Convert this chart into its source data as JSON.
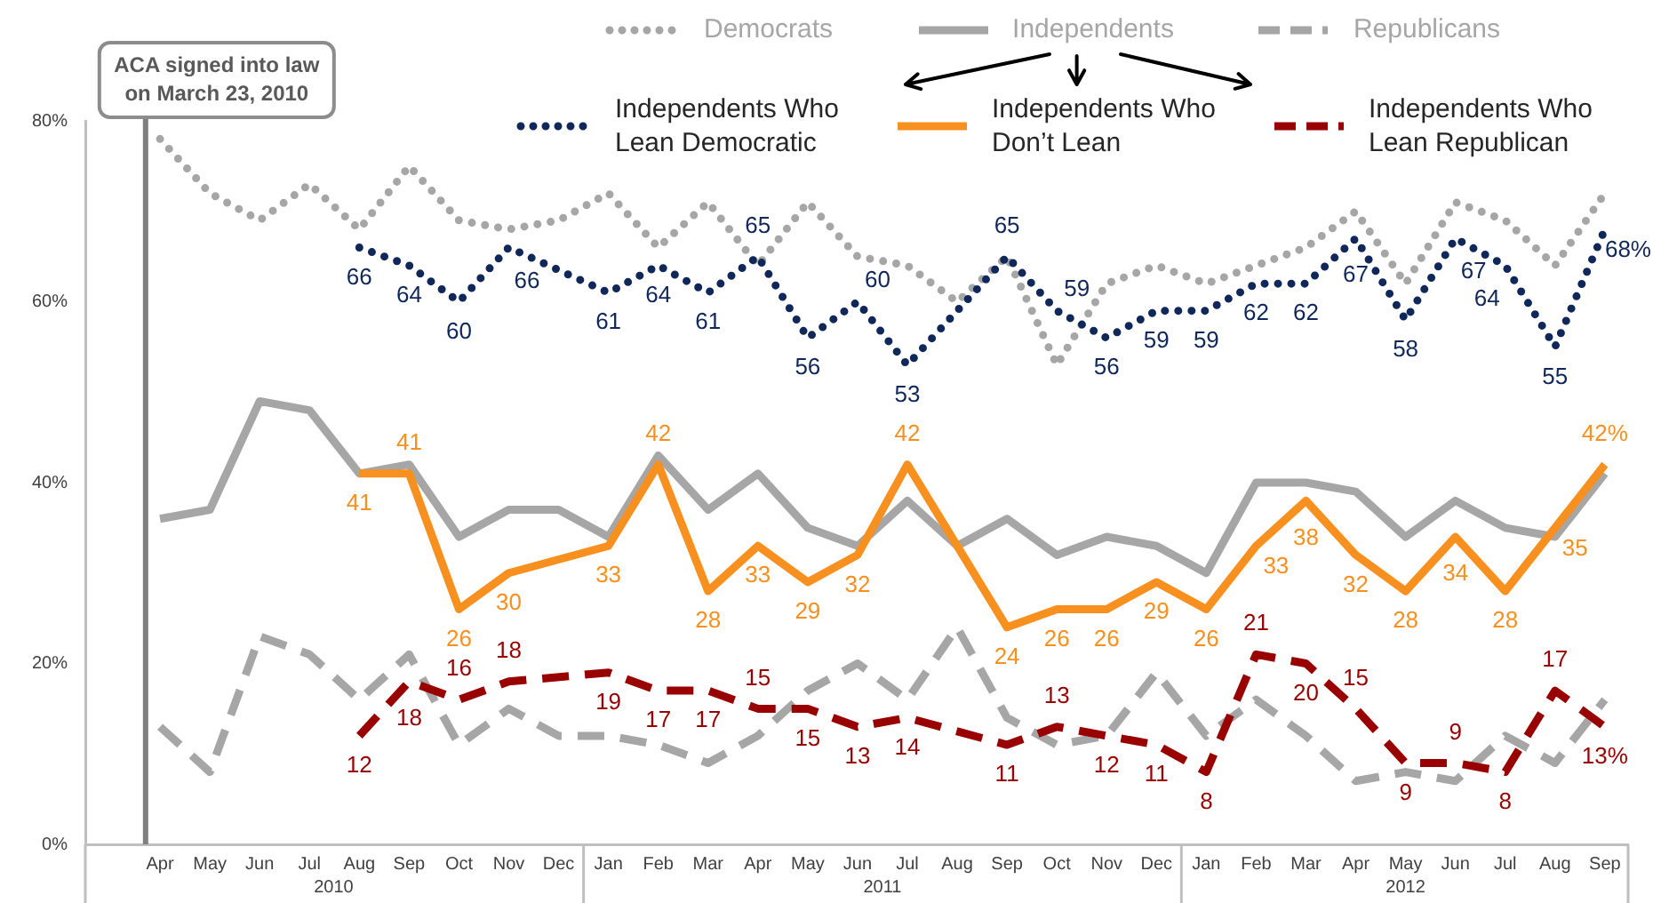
{
  "chart_data": {
    "type": "line",
    "x": [
      "2010-04",
      "2010-05",
      "2010-06",
      "2010-07",
      "2010-08",
      "2010-09",
      "2010-10",
      "2010-11",
      "2010-12",
      "2011-01",
      "2011-02",
      "2011-03",
      "2011-04",
      "2011-05",
      "2011-06",
      "2011-07",
      "2011-08",
      "2011-09",
      "2011-10",
      "2011-11",
      "2011-12",
      "2012-01",
      "2012-02",
      "2012-03",
      "2012-04",
      "2012-05",
      "2012-06",
      "2012-07",
      "2012-08",
      "2012-09"
    ],
    "xlim": [
      "2010-02-15",
      "2012-09-15"
    ],
    "xticks": [
      {
        "value": "2010-04",
        "label": "Apr"
      },
      {
        "value": "2010-05",
        "label": "May"
      },
      {
        "value": "2010-06",
        "label": "Jun"
      },
      {
        "value": "2010-07",
        "label": "Jul"
      },
      {
        "value": "2010-08",
        "label": "Aug"
      },
      {
        "value": "2010-09",
        "label": "Sep"
      },
      {
        "value": "2010-10",
        "label": "Oct"
      },
      {
        "value": "2010-11",
        "label": "Nov"
      },
      {
        "value": "2010-12",
        "label": "Dec"
      },
      {
        "value": "2011-01",
        "label": "Jan"
      },
      {
        "value": "2011-02",
        "label": "Feb"
      },
      {
        "value": "2011-03",
        "label": "Mar"
      },
      {
        "value": "2011-04",
        "label": "Apr"
      },
      {
        "value": "2011-05",
        "label": "May"
      },
      {
        "value": "2011-06",
        "label": "Jun"
      },
      {
        "value": "2011-07",
        "label": "Jul"
      },
      {
        "value": "2011-08",
        "label": "Aug"
      },
      {
        "value": "2011-09",
        "label": "Sep"
      },
      {
        "value": "2011-10",
        "label": "Oct"
      },
      {
        "value": "2011-11",
        "label": "Nov"
      },
      {
        "value": "2011-12",
        "label": "Dec"
      },
      {
        "value": "2012-01",
        "label": "Jan"
      },
      {
        "value": "2012-02",
        "label": "Feb"
      },
      {
        "value": "2012-03",
        "label": "Mar"
      },
      {
        "value": "2012-04",
        "label": "Apr"
      },
      {
        "value": "2012-05",
        "label": "May"
      },
      {
        "value": "2012-06",
        "label": "Jun"
      },
      {
        "value": "2012-07",
        "label": "Jul"
      },
      {
        "value": "2012-08",
        "label": "Aug"
      },
      {
        "value": "2012-09",
        "label": "Sep"
      }
    ],
    "x2lim": [
      "2010-02-15",
      "2012-09-15"
    ],
    "x2ticks": [
      {
        "value": "2010-07-16",
        "label": "2010"
      },
      {
        "value": "2011-06-16",
        "label": "2011"
      },
      {
        "value": "2012-05",
        "label": "2012"
      }
    ],
    "ylim": [
      0,
      80
    ],
    "yticks": [
      {
        "value": 0,
        "label": "0%"
      },
      {
        "value": 20,
        "label": "20%"
      },
      {
        "value": 40,
        "label": "40%"
      },
      {
        "value": 60,
        "label": "60%"
      },
      {
        "value": 80,
        "label": "80%"
      }
    ],
    "legend": "top",
    "marker": "none",
    "ref_lines": [
      {
        "axis": "x",
        "value": "2010-03-23",
        "label": "ACA signed into law on March 23, 2010",
        "color": "#7f7f7f"
      }
    ],
    "series": [
      {
        "name": "Democrats",
        "color": "#a6a6a6",
        "line_style": "dotted",
        "values": [
          78,
          72,
          69,
          73,
          68,
          75,
          69,
          68,
          69,
          72,
          66,
          71,
          64,
          71,
          65,
          64,
          60,
          65,
          53,
          62,
          64,
          62,
          64,
          66,
          70,
          62,
          71,
          69,
          64,
          72
        ]
      },
      {
        "name": "Independents",
        "color": "#a6a6a6",
        "line_style": "solid",
        "values": [
          36,
          37,
          49,
          48,
          41,
          42,
          34,
          37,
          37,
          34,
          43,
          37,
          41,
          35,
          33,
          38,
          33,
          36,
          32,
          34,
          33,
          30,
          40,
          40,
          39,
          34,
          38,
          35,
          34,
          41
        ]
      },
      {
        "name": "Republicans",
        "color": "#a6a6a6",
        "line_style": "dashed",
        "values": [
          13,
          8,
          23,
          21,
          16,
          21,
          11,
          15,
          12,
          12,
          11,
          9,
          12,
          17,
          20,
          16,
          24,
          14,
          11,
          12,
          19,
          12,
          16,
          12,
          7,
          8,
          7,
          12,
          9,
          16
        ]
      },
      {
        "name": "Independents Who Lean Democratic",
        "color": "#10275a",
        "line_style": "dotted",
        "values": [
          null,
          null,
          null,
          null,
          66,
          64,
          60,
          66,
          null,
          61,
          64,
          61,
          65,
          56,
          60,
          53,
          null,
          65,
          59,
          56,
          59,
          59,
          62,
          62,
          67,
          58,
          67,
          64,
          55,
          68
        ],
        "value_labels": [
          null,
          null,
          null,
          null,
          "66",
          "64",
          "60",
          "66",
          null,
          "61",
          "64",
          "61",
          "65",
          "56",
          "60",
          "53",
          null,
          "65",
          "59",
          "56",
          "59",
          "59",
          "62",
          "62",
          "67",
          "58",
          "67",
          "64",
          "55",
          "68%"
        ]
      },
      {
        "name": "Independents Who Don’t Lean",
        "color": "#f7901e",
        "line_style": "solid",
        "values": [
          null,
          null,
          null,
          null,
          41,
          41,
          26,
          30,
          null,
          33,
          42,
          28,
          33,
          29,
          32,
          42,
          null,
          24,
          26,
          26,
          29,
          26,
          33,
          38,
          32,
          28,
          34,
          28,
          35,
          42
        ],
        "value_labels": [
          null,
          null,
          null,
          null,
          "41",
          "41",
          "26",
          "30",
          null,
          "33",
          "42",
          "28",
          "33",
          "29",
          "32",
          "42",
          null,
          "24",
          "26",
          "26",
          "29",
          "26",
          "33",
          "38",
          "32",
          "28",
          "34",
          "28",
          "35",
          "42%"
        ]
      },
      {
        "name": "Independents Who Lean Republican",
        "color": "#990000",
        "line_style": "dashed",
        "values": [
          null,
          null,
          null,
          null,
          12,
          18,
          16,
          18,
          null,
          19,
          17,
          17,
          15,
          15,
          13,
          14,
          null,
          11,
          13,
          12,
          11,
          8,
          21,
          20,
          15,
          9,
          9,
          8,
          17,
          13
        ],
        "value_labels": [
          null,
          null,
          null,
          null,
          "12",
          "18",
          "16",
          "18",
          null,
          "19",
          "17",
          "17",
          "15",
          "15",
          "13",
          "14",
          null,
          "11",
          "13",
          "12",
          "11",
          "8",
          "21",
          "20",
          "15",
          "9",
          "9",
          "8",
          "17",
          "13%"
        ]
      }
    ]
  }
}
